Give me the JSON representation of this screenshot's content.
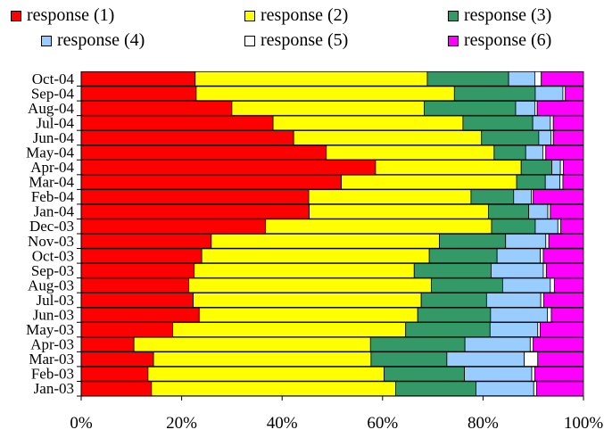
{
  "chart_data": {
    "type": "bar",
    "orientation": "horizontal",
    "stacked": "percent",
    "title": "",
    "xlabel": "",
    "ylabel": "",
    "xlim": [
      0,
      100
    ],
    "x_ticks": [
      "0%",
      "20%",
      "40%",
      "60%",
      "80%",
      "100%"
    ],
    "grid": false,
    "legend_position": "top",
    "categories": [
      "Jan-03",
      "Feb-03",
      "Mar-03",
      "Apr-03",
      "May-03",
      "Jun-03",
      "Jul-03",
      "Aug-03",
      "Sep-03",
      "Oct-03",
      "Nov-03",
      "Dec-03",
      "Jan-04",
      "Feb-04",
      "Mar-04",
      "Apr-04",
      "May-04",
      "Jun-04",
      "Jul-04",
      "Aug-04",
      "Sep-04",
      "Oct-04"
    ],
    "series": [
      {
        "name": "response (1)",
        "color": "#ff0000",
        "values": [
          14.0,
          13.3,
          14.4,
          10.5,
          18.2,
          23.5,
          22.3,
          21.4,
          22.5,
          24.0,
          25.9,
          36.7,
          45.4,
          45.3,
          51.8,
          58.6,
          48.8,
          42.3,
          38.2,
          30.0,
          22.9,
          22.7
        ]
      },
      {
        "name": "response (2)",
        "color": "#ffff00",
        "values": [
          48.6,
          47.0,
          43.3,
          47.1,
          46.4,
          43.5,
          45.4,
          48.3,
          43.8,
          45.3,
          45.4,
          45.0,
          35.7,
          32.3,
          34.9,
          29.0,
          33.4,
          37.4,
          37.8,
          38.3,
          51.4,
          46.2
        ]
      },
      {
        "name": "response (3)",
        "color": "#339966",
        "values": [
          16.0,
          16.0,
          15.1,
          18.8,
          16.8,
          14.5,
          13.0,
          14.2,
          15.3,
          13.5,
          13.2,
          8.7,
          8.0,
          8.5,
          5.7,
          6.1,
          6.3,
          11.4,
          13.9,
          18.2,
          16.1,
          16.2
        ]
      },
      {
        "name": "response (4)",
        "color": "#99ccff",
        "values": [
          11.5,
          13.4,
          15.4,
          13.0,
          9.5,
          11.3,
          10.8,
          9.5,
          10.4,
          8.6,
          8.0,
          4.5,
          3.8,
          3.5,
          2.9,
          1.7,
          3.4,
          2.4,
          3.5,
          3.8,
          5.5,
          5.2
        ]
      },
      {
        "name": "response (5)",
        "color": "#ffffff",
        "values": [
          0.6,
          0.6,
          2.7,
          0.6,
          0.5,
          0.8,
          0.6,
          0.8,
          0.6,
          0.6,
          0.6,
          0.6,
          0.5,
          0.4,
          0.6,
          0.6,
          0.6,
          0.5,
          0.6,
          0.5,
          0.5,
          1.3
        ]
      },
      {
        "name": "response (6)",
        "color": "#ff00ff",
        "values": [
          9.3,
          9.7,
          9.1,
          10.0,
          8.6,
          6.4,
          7.9,
          5.8,
          7.4,
          8.0,
          6.9,
          4.5,
          6.6,
          10.0,
          4.1,
          4.0,
          7.5,
          6.0,
          6.0,
          9.2,
          3.6,
          8.4
        ]
      }
    ]
  }
}
